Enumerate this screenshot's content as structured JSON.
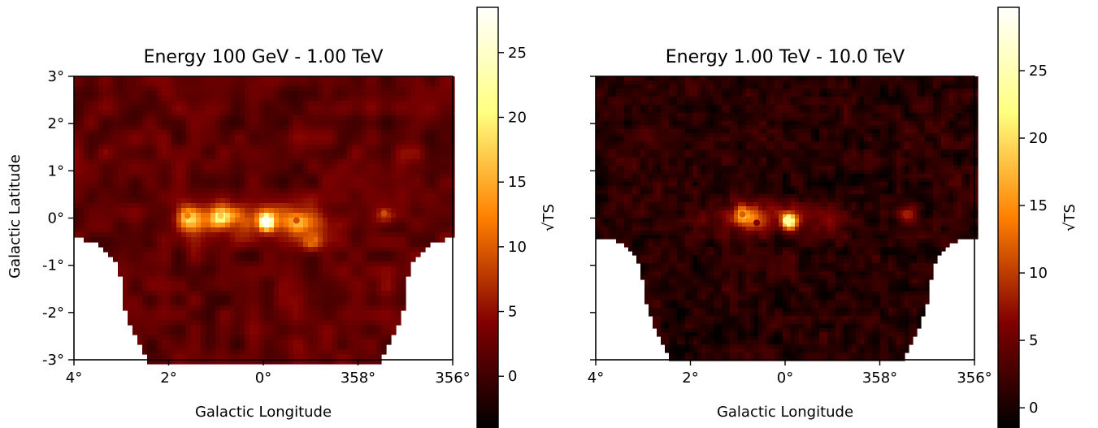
{
  "chart_data": [
    {
      "type": "heatmap",
      "title": "Energy 100 GeV - 1.00 TeV",
      "xlabel": "Galactic Longitude",
      "ylabel": "Galactic Latitude",
      "xlim": [
        4,
        356
      ],
      "ylim": [
        -3,
        3
      ],
      "xticks": [
        "4°",
        "2°",
        "0°",
        "358°",
        "356°"
      ],
      "yticks": [
        "3°",
        "2°",
        "1°",
        "0°",
        "-1°",
        "-2°",
        "-3°"
      ],
      "colorbar": {
        "label": "√TS",
        "range": [
          -4,
          28.5
        ],
        "ticks": [
          0,
          5,
          10,
          15,
          20,
          25
        ]
      },
      "sources": [
        {
          "l": 359.95,
          "b": -0.05,
          "sqrt_ts": 28
        },
        {
          "l": 0.9,
          "b": 0.05,
          "sqrt_ts": 17
        },
        {
          "l": 1.6,
          "b": 0.05,
          "sqrt_ts": 12
        },
        {
          "l": 359.0,
          "b": -0.45,
          "sqrt_ts": 10
        },
        {
          "l": 359.3,
          "b": -0.05,
          "sqrt_ts": 9
        },
        {
          "l": 357.45,
          "b": 0.1,
          "sqrt_ts": 9
        }
      ],
      "diffuse_ridge": {
        "l_range": [
          358.6,
          1.9
        ],
        "b_range": [
          -0.3,
          0.3
        ],
        "sqrt_ts": 8
      },
      "background_sqrt_ts": 2
    },
    {
      "type": "heatmap",
      "title": "Energy 1.00 TeV - 10.0 TeV",
      "xlabel": "Galactic Longitude",
      "ylabel": "",
      "xlim": [
        4,
        356
      ],
      "ylim": [
        -3,
        3
      ],
      "xticks": [
        "4°",
        "2°",
        "0°",
        "358°",
        "356°"
      ],
      "yticks": [],
      "colorbar": {
        "label": "√TS",
        "range": [
          -1.5,
          29.7
        ],
        "ticks": [
          0,
          5,
          10,
          15,
          20,
          25
        ]
      },
      "sources": [
        {
          "l": 359.95,
          "b": -0.05,
          "sqrt_ts": 24
        },
        {
          "l": 0.9,
          "b": 0.08,
          "sqrt_ts": 12
        },
        {
          "l": 357.45,
          "b": 0.08,
          "sqrt_ts": 8
        },
        {
          "l": 0.6,
          "b": -0.1,
          "sqrt_ts": 6
        }
      ],
      "diffuse_ridge": {
        "l_range": [
          358.8,
          1.8
        ],
        "b_range": [
          -0.3,
          0.3
        ],
        "sqrt_ts": 5
      },
      "background_sqrt_ts": 1
    }
  ]
}
